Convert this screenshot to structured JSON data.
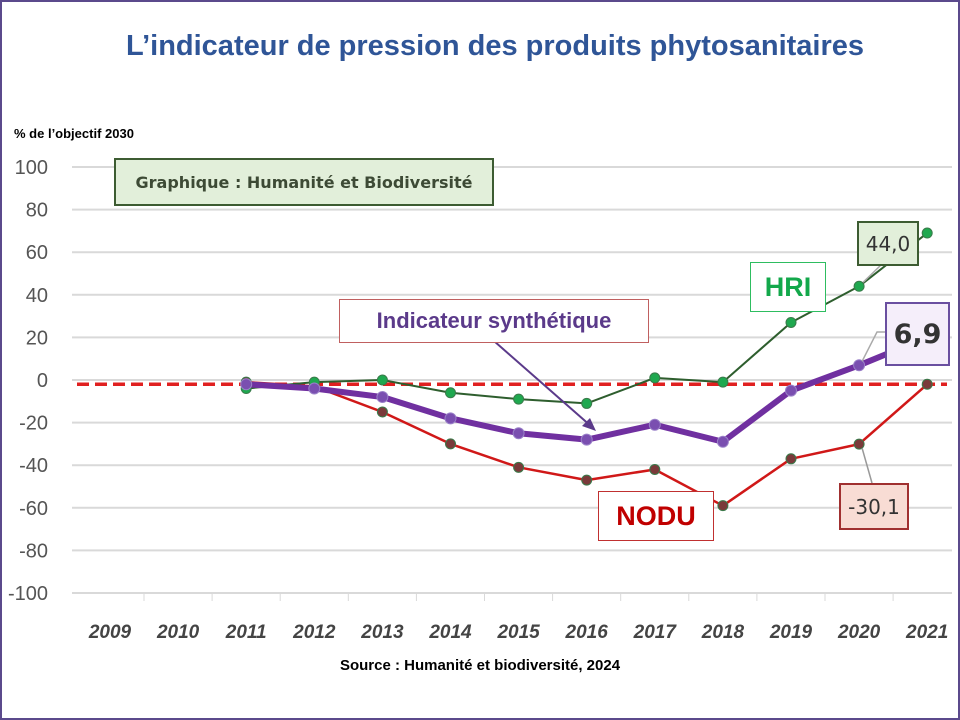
{
  "title": "L’indicateur de pression des produits phytosanitaires",
  "source": "Source : Humanité et biodiversité, 2024",
  "chart_data": {
    "type": "line",
    "title": "L’indicateur de pression des produits phytosanitaires",
    "subtitle": "Graphique : Humanité et Biodiversité",
    "ylabel": "% de l’objectif 2030",
    "xlabel": "",
    "ylim": [
      -100,
      100
    ],
    "yticks": [
      "100",
      "80",
      "60",
      "40",
      "20",
      "0",
      "-20",
      "-40",
      "-60",
      "-80",
      "-100"
    ],
    "x": [
      "2009",
      "2010",
      "2011",
      "2012",
      "2013",
      "2014",
      "2015",
      "2016",
      "2017",
      "2018",
      "2019",
      "2020",
      "2021"
    ],
    "grid": true,
    "reference_line": {
      "value": -2,
      "style": "dashed",
      "color": "#e02020"
    },
    "series": [
      {
        "name": "HRI",
        "color": "#2e5e2e",
        "marker_color": "#1fa84f",
        "width": 2,
        "x": [
          2011,
          2012,
          2013,
          2014,
          2015,
          2016,
          2017,
          2018,
          2019,
          2020,
          2021
        ],
        "values": [
          -4,
          -1,
          0,
          -6,
          -9,
          -11,
          1,
          -1,
          27,
          44.0,
          69
        ]
      },
      {
        "name": "Indicateur synthétique",
        "color": "#7030a0",
        "marker_color": "#7a4fb0",
        "width": 6,
        "x": [
          2011,
          2012,
          2013,
          2014,
          2015,
          2016,
          2017,
          2018,
          2019,
          2020,
          2021
        ],
        "values": [
          -2,
          -4,
          -8,
          -18,
          -25,
          -28,
          -21,
          -29,
          -5,
          6.9,
          20
        ]
      },
      {
        "name": "NODU",
        "color": "#d01818",
        "marker_color": "#7a3a3a",
        "width": 2.5,
        "x": [
          2011,
          2012,
          2013,
          2014,
          2015,
          2016,
          2017,
          2018,
          2019,
          2020,
          2021
        ],
        "values": [
          -1,
          -3,
          -15,
          -30,
          -41,
          -47,
          -42,
          -59,
          -37,
          -30.1,
          -2
        ]
      }
    ],
    "annotations": {
      "hri_label": "HRI",
      "synth_label": "Indicateur synthétique",
      "nodu_label": "NODU",
      "hri_value": "44,0",
      "synth_value": "6,9",
      "nodu_value": "-30,1"
    }
  }
}
